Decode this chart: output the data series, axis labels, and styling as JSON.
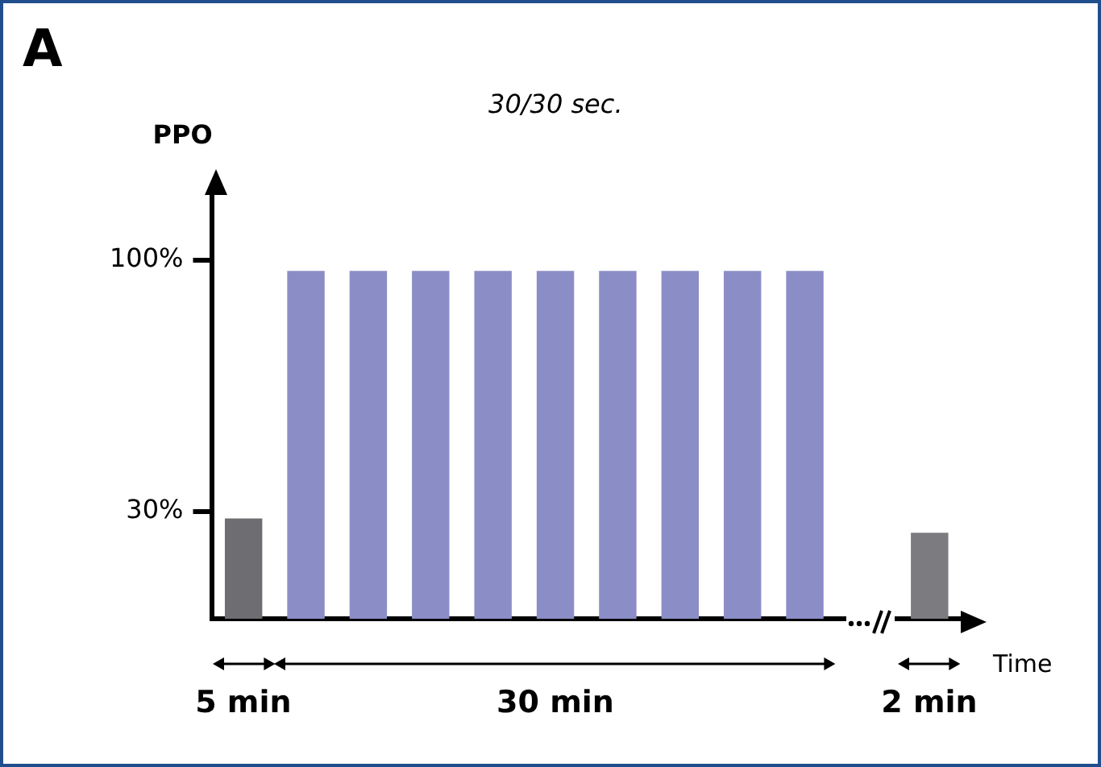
{
  "chart_data": {
    "type": "bar",
    "title": "A",
    "ylabel": "PPO",
    "xlabel": "Time",
    "categories": [
      null,
      null,
      null,
      null,
      null,
      null,
      null,
      null,
      null,
      null,
      null,
      null
    ],
    "values": [
      28,
      97,
      97,
      97,
      97,
      97,
      97,
      97,
      97,
      97,
      null,
      24
    ],
    "colors": [
      "#6e6e72",
      "#8b8ec6",
      "#8b8ec6",
      "#8b8ec6",
      "#8b8ec6",
      "#8b8ec6",
      "#8b8ec6",
      "#8b8ec6",
      "#8b8ec6",
      "#8b8ec6",
      "#ffffff",
      "#7c7c80"
    ],
    "ylim": [
      0,
      120
    ],
    "yticks": [
      {
        "value": 30,
        "label": "30%"
      },
      {
        "value": 100,
        "label": "100%"
      }
    ],
    "annotations": [
      "30/30 sec.",
      "5 min",
      "30 min",
      "2 min"
    ],
    "grid": false,
    "legend": false
  }
}
